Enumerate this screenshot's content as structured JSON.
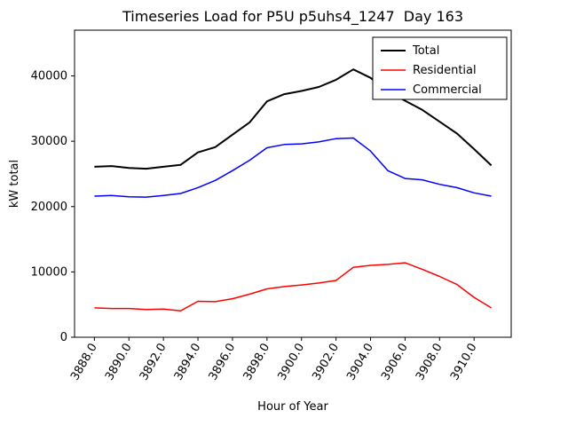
{
  "chart_data": {
    "type": "line",
    "title": "Timeseries Load for P5U p5uhs4_1247  Day 163",
    "xlabel": "Hour of Year",
    "ylabel": "kW total",
    "xlim": [
      3886.85,
      3912.15
    ],
    "ylim": [
      0,
      47000
    ],
    "grid": false,
    "legend": {
      "position": "upper right"
    },
    "x": [
      3888,
      3889,
      3890,
      3891,
      3892,
      3893,
      3894,
      3895,
      3896,
      3897,
      3898,
      3899,
      3900,
      3901,
      3902,
      3903,
      3904,
      3905,
      3906,
      3907,
      3908,
      3909,
      3910,
      3911
    ],
    "series": [
      {
        "name": "Total",
        "color": "#000000",
        "linewidth": 2,
        "values": [
          26100,
          26200,
          25900,
          25800,
          26100,
          26400,
          28300,
          29100,
          31000,
          32900,
          36100,
          37200,
          37700,
          38300,
          39400,
          41000,
          39700,
          37600,
          36200,
          34800,
          33000,
          31200,
          28800,
          26300
        ]
      },
      {
        "name": "Residential",
        "color": "#ff0000",
        "linewidth": 1.5,
        "values": [
          4500,
          4400,
          4400,
          4250,
          4300,
          4050,
          5500,
          5450,
          5900,
          6600,
          7400,
          7750,
          8000,
          8300,
          8700,
          10700,
          11000,
          11150,
          11400,
          10400,
          9300,
          8100,
          6100,
          4500
        ]
      },
      {
        "name": "Commercial",
        "color": "#0000ff",
        "linewidth": 1.5,
        "values": [
          21600,
          21700,
          21500,
          21450,
          21700,
          22000,
          22900,
          24000,
          25500,
          27100,
          29000,
          29500,
          29600,
          29900,
          30400,
          30500,
          28500,
          25500,
          24300,
          24100,
          23400,
          22900,
          22100,
          21600
        ]
      }
    ],
    "xticks": {
      "values": [
        3888,
        3890,
        3892,
        3894,
        3896,
        3898,
        3900,
        3902,
        3904,
        3906,
        3908,
        3910
      ],
      "labels": [
        "3888.0",
        "3890.0",
        "3892.0",
        "3894.0",
        "3896.0",
        "3898.0",
        "3900.0",
        "3902.0",
        "3904.0",
        "3906.0",
        "3908.0",
        "3910.0"
      ],
      "rotation": 60
    },
    "yticks": {
      "values": [
        0,
        10000,
        20000,
        30000,
        40000
      ],
      "labels": [
        "0",
        "10000",
        "20000",
        "30000",
        "40000"
      ]
    }
  }
}
